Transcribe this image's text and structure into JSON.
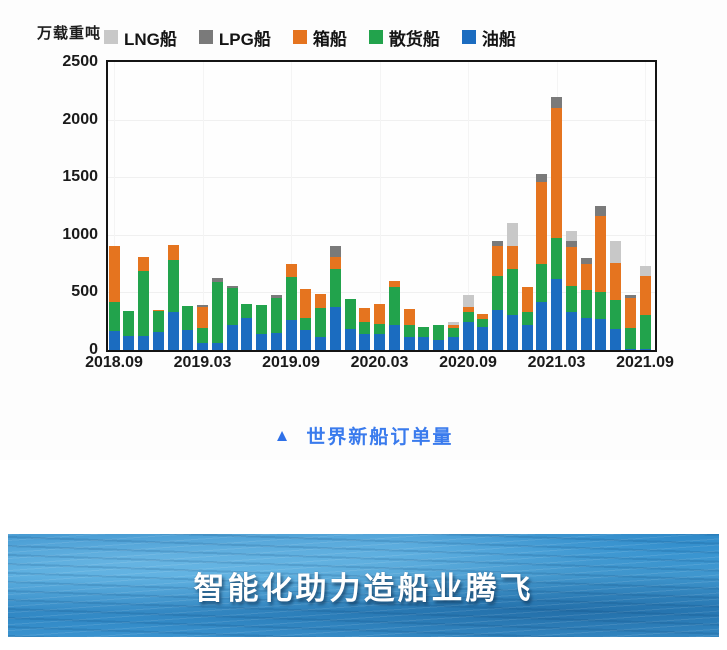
{
  "chart": {
    "y_axis_title": "万载重吨",
    "y_ticks": [
      0,
      500,
      1000,
      1500,
      2000,
      2500
    ],
    "x_ticks": [
      "2018.09",
      "2019.03",
      "2019.09",
      "2020.03",
      "2020.09",
      "2021.03",
      "2021.09"
    ],
    "legend": [
      {
        "label": "LNG船",
        "color": "#c8c8c8"
      },
      {
        "label": "LPG船",
        "color": "#7a7a7a"
      },
      {
        "label": "箱船",
        "color": "#e5741f"
      },
      {
        "label": "散货船",
        "color": "#22a34c"
      },
      {
        "label": "油船",
        "color": "#1b6cc0"
      }
    ]
  },
  "chart_data": {
    "type": "bar",
    "stacked": true,
    "title": "世界新船订单量",
    "ylabel": "万载重吨",
    "ylim": [
      0,
      2500
    ],
    "grid": "faint",
    "legend_position": "top",
    "x": [
      "2018.09",
      "2018.10",
      "2018.11",
      "2018.12",
      "2019.01",
      "2019.02",
      "2019.03",
      "2019.04",
      "2019.05",
      "2019.06",
      "2019.07",
      "2019.08",
      "2019.09",
      "2019.10",
      "2019.11",
      "2019.12",
      "2020.01",
      "2020.02",
      "2020.03",
      "2020.04",
      "2020.05",
      "2020.06",
      "2020.07",
      "2020.08",
      "2020.09",
      "2020.10",
      "2020.11",
      "2020.12",
      "2021.01",
      "2021.02",
      "2021.03",
      "2021.04",
      "2021.05",
      "2021.06",
      "2021.07",
      "2021.08",
      "2021.09"
    ],
    "series": [
      {
        "name": "油船",
        "color": "#1b6cc0",
        "values": [
          165,
          125,
          120,
          155,
          330,
          170,
          65,
          60,
          220,
          275,
          135,
          145,
          260,
          175,
          115,
          370,
          185,
          140,
          140,
          215,
          110,
          115,
          85,
          110,
          240,
          200,
          350,
          300,
          215,
          420,
          620,
          330,
          280,
          270,
          185,
          10,
          10
        ]
      },
      {
        "name": "散货船",
        "color": "#22a34c",
        "values": [
          250,
          215,
          570,
          180,
          455,
          215,
          125,
          530,
          320,
          125,
          255,
          310,
          370,
          105,
          250,
          330,
          255,
          100,
          85,
          330,
          105,
          85,
          130,
          85,
          90,
          70,
          290,
          400,
          115,
          330,
          350,
          230,
          245,
          230,
          245,
          180,
          290
        ]
      },
      {
        "name": "箱船",
        "color": "#e5741f",
        "values": [
          485,
          0,
          115,
          15,
          130,
          0,
          185,
          0,
          0,
          0,
          0,
          0,
          115,
          250,
          125,
          105,
          0,
          125,
          175,
          55,
          140,
          0,
          0,
          20,
          45,
          45,
          265,
          200,
          215,
          710,
          1130,
          330,
          225,
          665,
          325,
          260,
          345
        ]
      },
      {
        "name": "LPG船",
        "color": "#7a7a7a",
        "values": [
          0,
          0,
          0,
          0,
          0,
          0,
          15,
          35,
          15,
          0,
          0,
          25,
          0,
          0,
          0,
          95,
          0,
          0,
          0,
          0,
          0,
          0,
          0,
          0,
          0,
          0,
          45,
          0,
          0,
          70,
          100,
          60,
          50,
          85,
          0,
          30,
          0
        ]
      },
      {
        "name": "LNG船",
        "color": "#c8c8c8",
        "values": [
          0,
          0,
          0,
          0,
          0,
          0,
          0,
          0,
          0,
          0,
          0,
          0,
          0,
          0,
          0,
          0,
          0,
          0,
          0,
          0,
          0,
          0,
          0,
          25,
          100,
          0,
          0,
          200,
          0,
          0,
          0,
          80,
          0,
          0,
          190,
          0,
          85
        ]
      }
    ]
  },
  "caption": {
    "marker": "▲",
    "text": "世界新船订单量"
  },
  "banner": {
    "title": "智能化助力造船业腾飞"
  }
}
